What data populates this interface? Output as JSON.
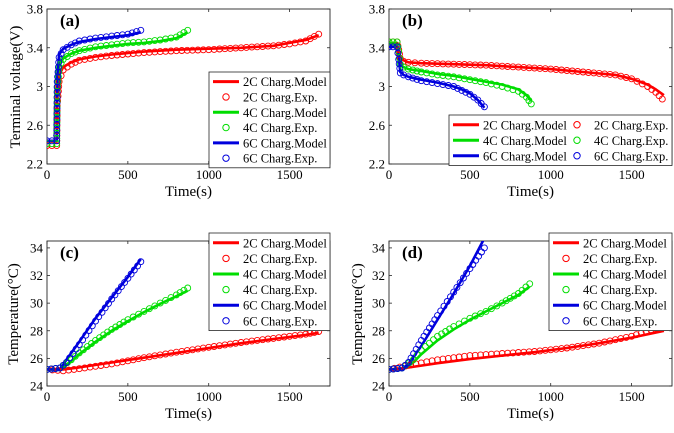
{
  "chart_data": [
    {
      "panel_label": "(a)",
      "type": "line",
      "xlabel": "Time(s)",
      "ylabel": "Terminal voltage(V)",
      "xlim": [
        0,
        1750
      ],
      "ylim": [
        2.2,
        3.8
      ],
      "xticks": [
        0,
        500,
        1000,
        1500
      ],
      "yticks": [
        2.2,
        2.6,
        3,
        3.4,
        3.8
      ],
      "ytick_labels": [
        "2.2",
        "2.6",
        "3",
        "3.4",
        "3.8"
      ],
      "legend": {
        "placement": "lower-right",
        "columns": 1
      },
      "series": [
        {
          "name": "2C Charg.Model",
          "kind": "model",
          "color": "#ff0000",
          "x": [
            0,
            60,
            63,
            75,
            100,
            150,
            200,
            300,
            400,
            600,
            800,
            1000,
            1200,
            1400,
            1500,
            1600,
            1680
          ],
          "y": [
            2.44,
            2.44,
            2.85,
            3.12,
            3.2,
            3.25,
            3.28,
            3.31,
            3.33,
            3.36,
            3.38,
            3.39,
            3.4,
            3.42,
            3.45,
            3.48,
            3.53
          ]
        },
        {
          "name": "2C Charg.Exp.",
          "kind": "exp",
          "color": "#ff0000",
          "x": [
            0,
            60,
            63,
            75,
            100,
            150,
            200,
            300,
            400,
            600,
            800,
            1000,
            1200,
            1400,
            1500,
            1600,
            1680
          ],
          "y": [
            2.39,
            2.39,
            2.8,
            3.05,
            3.17,
            3.23,
            3.27,
            3.3,
            3.32,
            3.35,
            3.37,
            3.38,
            3.4,
            3.42,
            3.44,
            3.47,
            3.54
          ]
        },
        {
          "name": "4C Charg.Model",
          "kind": "model",
          "color": "#00dd00",
          "x": [
            0,
            60,
            63,
            75,
            100,
            150,
            200,
            300,
            400,
            500,
            600,
            700,
            800,
            870
          ],
          "y": [
            2.44,
            2.44,
            3.0,
            3.22,
            3.29,
            3.34,
            3.37,
            3.4,
            3.42,
            3.44,
            3.45,
            3.47,
            3.5,
            3.56
          ]
        },
        {
          "name": "4C Charg.Exp.",
          "kind": "exp",
          "color": "#00dd00",
          "x": [
            0,
            60,
            63,
            75,
            100,
            150,
            200,
            300,
            400,
            500,
            600,
            700,
            800,
            870
          ],
          "y": [
            2.41,
            2.41,
            2.95,
            3.2,
            3.28,
            3.34,
            3.37,
            3.41,
            3.43,
            3.45,
            3.46,
            3.48,
            3.51,
            3.58
          ]
        },
        {
          "name": "6C Charg.Model",
          "kind": "model",
          "color": "#0000dd",
          "x": [
            0,
            60,
            63,
            75,
            100,
            150,
            200,
            300,
            400,
            500,
            580
          ],
          "y": [
            2.44,
            2.44,
            3.1,
            3.33,
            3.39,
            3.43,
            3.46,
            3.49,
            3.51,
            3.53,
            3.56
          ]
        },
        {
          "name": "6C Charg.Exp.",
          "kind": "exp",
          "color": "#0000dd",
          "x": [
            0,
            60,
            63,
            75,
            100,
            150,
            200,
            300,
            400,
            500,
            580
          ],
          "y": [
            2.44,
            2.44,
            3.05,
            3.3,
            3.38,
            3.43,
            3.47,
            3.5,
            3.52,
            3.54,
            3.58
          ]
        }
      ]
    },
    {
      "panel_label": "(b)",
      "type": "line",
      "xlabel": "Time(s)",
      "ylabel": "",
      "xlim": [
        0,
        1750
      ],
      "ylim": [
        2.2,
        3.8
      ],
      "xticks": [
        0,
        500,
        1000,
        1500
      ],
      "yticks": [
        2.2,
        2.6,
        3,
        3.4,
        3.8
      ],
      "ytick_labels": [
        "2.2",
        "2.6",
        "3",
        "3.4",
        "3.8"
      ],
      "legend": {
        "placement": "bottom",
        "columns": 2
      },
      "series": [
        {
          "name": "2C Charg.Model",
          "kind": "model",
          "color": "#ff0000",
          "x": [
            0,
            50,
            60,
            70,
            90,
            120,
            200,
            400,
            600,
            800,
            1000,
            1200,
            1400,
            1500,
            1600,
            1650,
            1700
          ],
          "y": [
            3.41,
            3.41,
            3.38,
            3.3,
            3.27,
            3.25,
            3.24,
            3.23,
            3.22,
            3.2,
            3.18,
            3.15,
            3.12,
            3.08,
            3.02,
            2.97,
            2.91
          ]
        },
        {
          "name": "2C Charg.Exp.",
          "kind": "exp",
          "color": "#ff0000",
          "x": [
            0,
            50,
            60,
            70,
            90,
            120,
            200,
            400,
            600,
            800,
            1000,
            1200,
            1400,
            1500,
            1600,
            1650,
            1690
          ],
          "y": [
            3.46,
            3.46,
            3.38,
            3.29,
            3.26,
            3.25,
            3.24,
            3.23,
            3.22,
            3.2,
            3.18,
            3.15,
            3.12,
            3.08,
            3.0,
            2.94,
            2.87
          ]
        },
        {
          "name": "4C Charg.Model",
          "kind": "model",
          "color": "#00dd00",
          "x": [
            0,
            50,
            60,
            70,
            90,
            120,
            200,
            300,
            400,
            500,
            600,
            700,
            800,
            850,
            880
          ],
          "y": [
            3.45,
            3.45,
            3.35,
            3.22,
            3.2,
            3.18,
            3.16,
            3.13,
            3.11,
            3.08,
            3.05,
            3.02,
            2.97,
            2.91,
            2.85
          ]
        },
        {
          "name": "4C Charg.Exp.",
          "kind": "exp",
          "color": "#00dd00",
          "x": [
            0,
            50,
            60,
            70,
            90,
            120,
            200,
            300,
            400,
            500,
            600,
            700,
            800,
            850,
            880
          ],
          "y": [
            3.46,
            3.46,
            3.36,
            3.23,
            3.2,
            3.18,
            3.15,
            3.12,
            3.1,
            3.07,
            3.04,
            3.0,
            2.95,
            2.89,
            2.82
          ]
        },
        {
          "name": "6C Charg.Model",
          "kind": "model",
          "color": "#0000dd",
          "x": [
            0,
            50,
            60,
            70,
            90,
            120,
            200,
            300,
            400,
            450,
            500,
            550,
            590
          ],
          "y": [
            3.41,
            3.41,
            3.3,
            3.15,
            3.12,
            3.1,
            3.07,
            3.04,
            3.0,
            2.97,
            2.93,
            2.86,
            2.78
          ]
        },
        {
          "name": "6C Charg.Exp.",
          "kind": "exp",
          "color": "#0000dd",
          "x": [
            0,
            50,
            60,
            70,
            90,
            120,
            200,
            300,
            400,
            450,
            500,
            550,
            590
          ],
          "y": [
            3.41,
            3.41,
            3.28,
            3.14,
            3.12,
            3.1,
            3.06,
            3.03,
            3.0,
            2.96,
            2.92,
            2.86,
            2.79
          ]
        }
      ]
    },
    {
      "panel_label": "(c)",
      "type": "line",
      "xlabel": "Time(s)",
      "ylabel": "Temperature(°C)",
      "xlim": [
        0,
        1750
      ],
      "ylim": [
        24,
        34.5
      ],
      "xticks": [
        0,
        500,
        1000,
        1500
      ],
      "yticks": [
        24,
        26,
        28,
        30,
        32,
        34
      ],
      "ytick_labels": [
        "24",
        "26",
        "28",
        "30",
        "32",
        "34"
      ],
      "legend": {
        "placement": "top-right",
        "columns": 1
      },
      "series": [
        {
          "name": "2C Charg.Model",
          "kind": "model",
          "color": "#ff0000",
          "x": [
            0,
            100,
            200,
            400,
            600,
            800,
            1000,
            1200,
            1400,
            1600,
            1680
          ],
          "y": [
            25.2,
            25.2,
            25.35,
            25.7,
            26.05,
            26.4,
            26.75,
            27.1,
            27.4,
            27.7,
            27.85
          ]
        },
        {
          "name": "2C Charg.Exp.",
          "kind": "exp",
          "color": "#ff0000",
          "x": [
            0,
            100,
            200,
            400,
            600,
            800,
            1000,
            1200,
            1400,
            1600,
            1680
          ],
          "y": [
            25.2,
            25.1,
            25.25,
            25.6,
            26.05,
            26.45,
            26.8,
            27.15,
            27.45,
            27.75,
            27.95
          ]
        },
        {
          "name": "4C Charg.Model",
          "kind": "model",
          "color": "#00dd00",
          "x": [
            0,
            80,
            150,
            200,
            300,
            400,
            500,
            600,
            700,
            800,
            870
          ],
          "y": [
            25.2,
            25.2,
            25.8,
            26.3,
            27.2,
            28.0,
            28.7,
            29.35,
            29.95,
            30.5,
            30.9
          ]
        },
        {
          "name": "4C Charg.Exp.",
          "kind": "exp",
          "color": "#00dd00",
          "x": [
            0,
            80,
            150,
            200,
            300,
            400,
            500,
            600,
            700,
            800,
            870
          ],
          "y": [
            25.2,
            25.3,
            25.9,
            26.4,
            27.3,
            28.1,
            28.8,
            29.4,
            30.0,
            30.6,
            31.1
          ]
        },
        {
          "name": "6C Charg.Model",
          "kind": "model",
          "color": "#0000dd",
          "x": [
            0,
            80,
            120,
            200,
            300,
            400,
            500,
            580
          ],
          "y": [
            25.2,
            25.2,
            25.9,
            27.2,
            28.9,
            30.4,
            31.9,
            33.2
          ]
        },
        {
          "name": "6C Charg.Exp.",
          "kind": "exp",
          "color": "#0000dd",
          "x": [
            0,
            80,
            120,
            200,
            300,
            400,
            500,
            580
          ],
          "y": [
            25.2,
            25.3,
            25.7,
            27.0,
            28.7,
            30.3,
            31.8,
            33.0
          ]
        }
      ]
    },
    {
      "panel_label": "(d)",
      "type": "line",
      "xlabel": "Time(s)",
      "ylabel": "Temperature(°C)",
      "xlim": [
        0,
        1750
      ],
      "ylim": [
        24,
        34.5
      ],
      "xticks": [
        0,
        500,
        1000,
        1500
      ],
      "yticks": [
        24,
        26,
        28,
        30,
        32,
        34
      ],
      "ytick_labels": [
        "24",
        "26",
        "28",
        "30",
        "32",
        "34"
      ],
      "legend": {
        "placement": "top-right",
        "columns": 1
      },
      "series": [
        {
          "name": "2C Charg.Model",
          "kind": "model",
          "color": "#ff0000",
          "x": [
            0,
            100,
            300,
            500,
            700,
            900,
            1100,
            1300,
            1500,
            1700
          ],
          "y": [
            25.2,
            25.3,
            25.65,
            25.95,
            26.2,
            26.45,
            26.75,
            27.1,
            27.5,
            28.0
          ]
        },
        {
          "name": "2C Charg.Exp.",
          "kind": "exp",
          "color": "#ff0000",
          "x": [
            0,
            100,
            300,
            500,
            700,
            900,
            1100,
            1300,
            1500,
            1680
          ],
          "y": [
            25.2,
            25.45,
            25.9,
            26.2,
            26.35,
            26.5,
            26.75,
            27.1,
            27.6,
            28.3
          ]
        },
        {
          "name": "4C Charg.Model",
          "kind": "model",
          "color": "#00dd00",
          "x": [
            0,
            80,
            150,
            200,
            300,
            400,
            500,
            600,
            700,
            800,
            870
          ],
          "y": [
            25.2,
            25.2,
            25.7,
            26.3,
            27.3,
            28.1,
            28.8,
            29.4,
            30.0,
            30.6,
            31.2
          ]
        },
        {
          "name": "4C Charg.Exp.",
          "kind": "exp",
          "color": "#00dd00",
          "x": [
            0,
            80,
            150,
            200,
            300,
            400,
            500,
            600,
            700,
            800,
            870
          ],
          "y": [
            25.2,
            25.3,
            25.9,
            26.6,
            27.6,
            28.3,
            28.9,
            29.4,
            30.0,
            30.7,
            31.4
          ]
        },
        {
          "name": "6C Charg.Model",
          "kind": "model",
          "color": "#0000dd",
          "x": [
            0,
            80,
            120,
            200,
            300,
            400,
            500,
            590
          ],
          "y": [
            25.2,
            25.2,
            25.6,
            26.9,
            28.8,
            30.7,
            32.7,
            34.7
          ]
        },
        {
          "name": "6C Charg.Exp.",
          "kind": "exp",
          "color": "#0000dd",
          "x": [
            0,
            80,
            120,
            200,
            300,
            400,
            500,
            590
          ],
          "y": [
            25.2,
            25.3,
            25.7,
            27.3,
            29.1,
            30.8,
            32.5,
            34.0
          ]
        }
      ]
    }
  ]
}
